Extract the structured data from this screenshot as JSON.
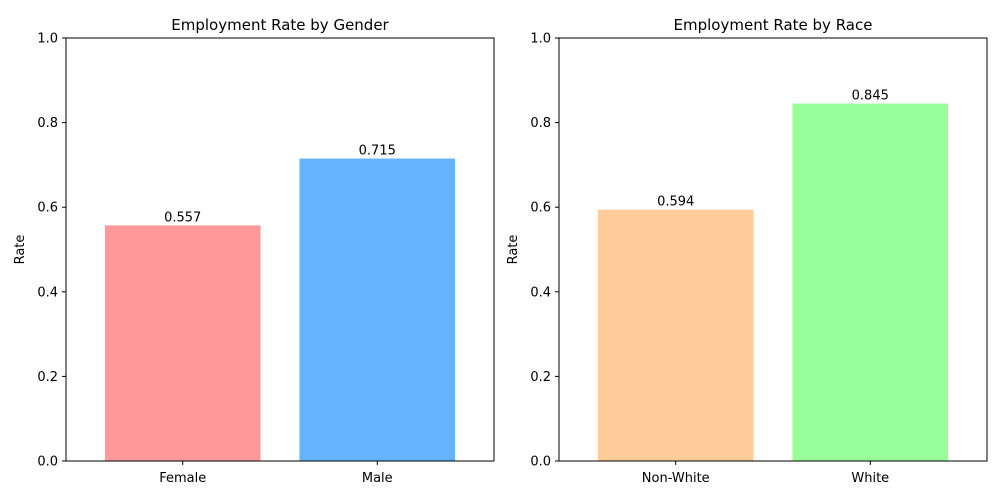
{
  "chart_data": [
    {
      "type": "bar",
      "title": "Employment Rate by Gender",
      "xlabel": "",
      "ylabel": "Rate",
      "ylim": [
        0,
        1.0
      ],
      "yticks": [
        "0.0",
        "0.2",
        "0.4",
        "0.6",
        "0.8",
        "1.0"
      ],
      "categories": [
        "Female",
        "Male"
      ],
      "values": [
        0.557,
        0.715
      ],
      "value_labels": [
        "0.557",
        "0.715"
      ],
      "colors": [
        "#ff9999",
        "#66b3ff"
      ],
      "grid": false,
      "legend": "none"
    },
    {
      "type": "bar",
      "title": "Employment Rate by Race",
      "xlabel": "",
      "ylabel": "Rate",
      "ylim": [
        0,
        1.0
      ],
      "yticks": [
        "0.0",
        "0.2",
        "0.4",
        "0.6",
        "0.8",
        "1.0"
      ],
      "categories": [
        "Non-White",
        "White"
      ],
      "values": [
        0.594,
        0.845
      ],
      "value_labels": [
        "0.594",
        "0.845"
      ],
      "colors": [
        "#ffcc99",
        "#99ff99"
      ],
      "grid": false,
      "legend": "none"
    }
  ]
}
